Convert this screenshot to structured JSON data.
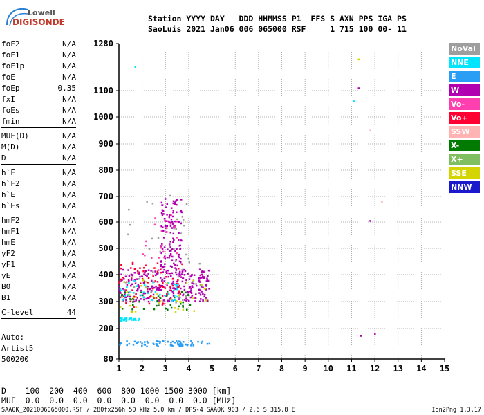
{
  "logo": {
    "line1": "Lowell",
    "line2": "DIGISONDE"
  },
  "header": {
    "line1": "Station YYYY DAY   DDD HHMMSS P1  FFS S AXN PPS IGA PS",
    "line2": "SaoLuis 2021 Jan06 006 065000 RSF     1 715 100 00- 11"
  },
  "params": {
    "group1": [
      {
        "name": "foF2",
        "value": "N/A"
      },
      {
        "name": "foF1",
        "value": "N/A"
      },
      {
        "name": "foF1p",
        "value": "N/A"
      },
      {
        "name": "foE",
        "value": "N/A"
      },
      {
        "name": "foEp",
        "value": "0.35"
      },
      {
        "name": "fxI",
        "value": "N/A"
      },
      {
        "name": "foEs",
        "value": "N/A"
      },
      {
        "name": "fmin",
        "value": "N/A"
      }
    ],
    "group2": [
      {
        "name": "MUF(D)",
        "value": "N/A"
      },
      {
        "name": "M(D)",
        "value": "N/A"
      },
      {
        "name": "D",
        "value": "N/A"
      }
    ],
    "group3": [
      {
        "name": "h`F",
        "value": "N/A"
      },
      {
        "name": "h`F2",
        "value": "N/A"
      },
      {
        "name": "h`E",
        "value": "N/A"
      },
      {
        "name": "h`Es",
        "value": "N/A"
      }
    ],
    "group4": [
      {
        "name": "hmF2",
        "value": "N/A"
      },
      {
        "name": "hmF1",
        "value": "N/A"
      },
      {
        "name": "hmE",
        "value": "N/A"
      },
      {
        "name": "yF2",
        "value": "N/A"
      },
      {
        "name": "yF1",
        "value": "N/A"
      },
      {
        "name": "yE",
        "value": "N/A"
      },
      {
        "name": "B0",
        "value": "N/A"
      },
      {
        "name": "B1",
        "value": "N/A"
      }
    ],
    "group5": [
      {
        "name": "C-level",
        "value": "44"
      }
    ]
  },
  "auto": {
    "line1": "Auto:",
    "line2": "Artist5",
    "line3": "500200"
  },
  "dmuf": {
    "line1": "D    100  200  400  600  800 1000 1500 3000 [km]",
    "line2": "MUF  0.0  0.0  0.0  0.0  0.0  0.0  0.0  0.0 [MHz]"
  },
  "footer": {
    "text": "SAA0K_2021006065000.RSF / 280fx256h 50 kHz 5.0 km / DPS-4 SAA0K 903 / 2.6 S 315.8 E",
    "version": "Ion2Png 1.3.17"
  },
  "legend": [
    {
      "label": "NoVal",
      "color": "#9e9e9e"
    },
    {
      "label": "NNE",
      "color": "#00e5ff"
    },
    {
      "label": "E",
      "color": "#2a9df4"
    },
    {
      "label": "W",
      "color": "#b000b0"
    },
    {
      "label": "Vo-",
      "color": "#ff3fb0"
    },
    {
      "label": "Vo+",
      "color": "#ff0033"
    },
    {
      "label": "SSW",
      "color": "#ffb3b3"
    },
    {
      "label": "X-",
      "color": "#007a00"
    },
    {
      "label": "X+",
      "color": "#7fbf5f"
    },
    {
      "label": "SSE",
      "color": "#d4d400"
    },
    {
      "label": "NNW",
      "color": "#1a1acc"
    }
  ],
  "chart_data": {
    "type": "scatter",
    "xlabel": "",
    "ylabel": "",
    "xlim": [
      1,
      15
    ],
    "ylim": [
      80,
      1280
    ],
    "x_ticks": [
      "1",
      "2",
      "3",
      "4",
      "5",
      "6",
      "7",
      "8",
      "9",
      "10",
      "11",
      "12",
      "13",
      "14",
      "15"
    ],
    "y_ticks": [
      "80",
      "200",
      "300",
      "400",
      "500",
      "600",
      "700",
      "800",
      "900",
      "1000",
      "1100",
      "1280"
    ],
    "y_scale": "reciprocal-like (ionogram virtual height)",
    "grid": true,
    "clusters": [
      {
        "series": "E",
        "x_range": [
          1.0,
          4.9
        ],
        "y_range": [
          130,
          152
        ],
        "density": 70
      },
      {
        "series": "NNE",
        "x_range": [
          1.0,
          1.9
        ],
        "y_range": [
          228,
          240
        ],
        "density": 25
      },
      {
        "series": "W",
        "x_range": [
          1.0,
          4.9
        ],
        "y_range": [
          300,
          420
        ],
        "density": 260
      },
      {
        "series": "W",
        "x_range": [
          2.8,
          3.7
        ],
        "y_range": [
          420,
          700
        ],
        "density": 120
      },
      {
        "series": "Vo+",
        "x_range": [
          1.0,
          3.8
        ],
        "y_range": [
          280,
          450
        ],
        "density": 70
      },
      {
        "series": "NNE",
        "x_range": [
          1.0,
          3.6
        ],
        "y_range": [
          300,
          380
        ],
        "density": 40
      },
      {
        "series": "X-",
        "x_range": [
          1.0,
          4.3
        ],
        "y_range": [
          270,
          340
        ],
        "density": 40
      },
      {
        "series": "SSE",
        "x_range": [
          1.0,
          4.8
        ],
        "y_range": [
          260,
          380
        ],
        "density": 40
      },
      {
        "series": "NoVal",
        "x_range": [
          1.0,
          4.5
        ],
        "y_range": [
          290,
          720
        ],
        "density": 40
      },
      {
        "series": "Vo-",
        "x_range": [
          2.0,
          3.5
        ],
        "y_range": [
          400,
          650
        ],
        "density": 25
      }
    ],
    "points": [
      {
        "series": "NNE",
        "x": 1.7,
        "y": 1190
      },
      {
        "series": "SSE",
        "x": 11.3,
        "y": 1220
      },
      {
        "series": "W",
        "x": 11.3,
        "y": 1110
      },
      {
        "series": "NNE",
        "x": 11.1,
        "y": 1060
      },
      {
        "series": "SSW",
        "x": 11.8,
        "y": 950
      },
      {
        "series": "SSW",
        "x": 12.3,
        "y": 680
      },
      {
        "series": "W",
        "x": 11.8,
        "y": 605
      },
      {
        "series": "W",
        "x": 11.4,
        "y": 172
      },
      {
        "series": "W",
        "x": 12.0,
        "y": 178
      }
    ]
  }
}
